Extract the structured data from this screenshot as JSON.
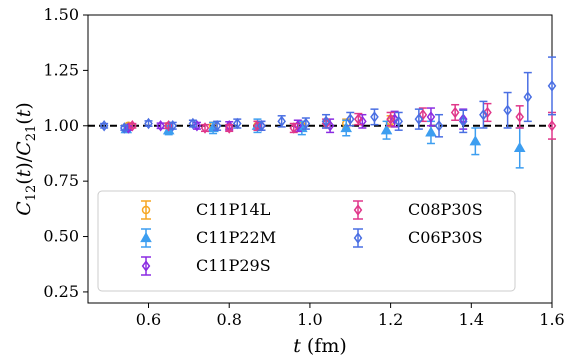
{
  "chart_data": {
    "type": "scatter",
    "xlabel": "t (fm)",
    "ylabel": "C12(t)/C21(t)",
    "xlim": [
      0.45,
      1.6
    ],
    "ylim": [
      0.2,
      1.5
    ],
    "x_ticks": [
      0.6,
      0.8,
      1.0,
      1.2,
      1.4,
      1.6
    ],
    "y_ticks": [
      0.25,
      0.5,
      0.75,
      1.0,
      1.25,
      1.5
    ],
    "x_tick_labels": [
      "0.6",
      "0.8",
      "1.0",
      "1.2",
      "1.4",
      "1.6"
    ],
    "y_tick_labels": [
      "0.25",
      "0.50",
      "0.75",
      "1.00",
      "1.25",
      "1.50"
    ],
    "reference_line": {
      "y": 1.0,
      "style": "dashed",
      "color": "#000000"
    },
    "grid": false,
    "legend": {
      "placement": "lower-left",
      "columns": 2
    },
    "series": [
      {
        "name": "C11P14L",
        "marker": "circle",
        "color": "#f5a623",
        "points": [
          {
            "x": 0.55,
            "y": 1.0,
            "err": 0.01
          },
          {
            "x": 0.65,
            "y": 1.0,
            "err": 0.012
          },
          {
            "x": 0.76,
            "y": 1.0,
            "err": 0.015
          },
          {
            "x": 0.87,
            "y": 1.0,
            "err": 0.02
          },
          {
            "x": 0.98,
            "y": 1.0,
            "err": 0.02
          },
          {
            "x": 1.09,
            "y": 1.01,
            "err": 0.02
          },
          {
            "x": 1.2,
            "y": 1.02,
            "err": 0.025
          }
        ]
      },
      {
        "name": "C11P22M",
        "marker": "triangle",
        "color": "#3d9ef0",
        "points": [
          {
            "x": 0.545,
            "y": 0.985,
            "err": 0.015
          },
          {
            "x": 0.65,
            "y": 0.98,
            "err": 0.02
          },
          {
            "x": 0.76,
            "y": 0.99,
            "err": 0.025
          },
          {
            "x": 0.87,
            "y": 1.0,
            "err": 0.03
          },
          {
            "x": 0.98,
            "y": 0.99,
            "err": 0.03
          },
          {
            "x": 1.09,
            "y": 0.99,
            "err": 0.035
          },
          {
            "x": 1.19,
            "y": 0.98,
            "err": 0.04
          },
          {
            "x": 1.3,
            "y": 0.97,
            "err": 0.05
          },
          {
            "x": 1.41,
            "y": 0.93,
            "err": 0.06
          },
          {
            "x": 1.52,
            "y": 0.9,
            "err": 0.09
          }
        ]
      },
      {
        "name": "C11P29S",
        "marker": "diamond",
        "color": "#8a2be2",
        "points": [
          {
            "x": 0.55,
            "y": 0.99,
            "err": 0.01
          },
          {
            "x": 0.63,
            "y": 1.0,
            "err": 0.012
          },
          {
            "x": 0.72,
            "y": 1.0,
            "err": 0.015
          },
          {
            "x": 0.8,
            "y": 1.0,
            "err": 0.018
          },
          {
            "x": 0.88,
            "y": 1.0,
            "err": 0.02
          },
          {
            "x": 0.97,
            "y": 1.0,
            "err": 0.025
          },
          {
            "x": 1.05,
            "y": 1.0,
            "err": 0.03
          },
          {
            "x": 1.13,
            "y": 1.02,
            "err": 0.03
          },
          {
            "x": 1.21,
            "y": 1.03,
            "err": 0.035
          },
          {
            "x": 1.3,
            "y": 1.04,
            "err": 0.04
          },
          {
            "x": 1.38,
            "y": 1.03,
            "err": 0.045
          }
        ]
      },
      {
        "name": "C08P30S",
        "marker": "diamond",
        "color": "#e0378a",
        "points": [
          {
            "x": 0.56,
            "y": 1.0,
            "err": 0.01
          },
          {
            "x": 0.65,
            "y": 1.0,
            "err": 0.012
          },
          {
            "x": 0.74,
            "y": 0.99,
            "err": 0.015
          },
          {
            "x": 0.8,
            "y": 0.99,
            "err": 0.015
          },
          {
            "x": 0.87,
            "y": 1.0,
            "err": 0.02
          },
          {
            "x": 0.96,
            "y": 0.99,
            "err": 0.02
          },
          {
            "x": 1.04,
            "y": 1.01,
            "err": 0.02
          },
          {
            "x": 1.12,
            "y": 1.03,
            "err": 0.025
          },
          {
            "x": 1.2,
            "y": 1.03,
            "err": 0.03
          },
          {
            "x": 1.28,
            "y": 1.05,
            "err": 0.03
          },
          {
            "x": 1.36,
            "y": 1.06,
            "err": 0.035
          },
          {
            "x": 1.44,
            "y": 1.06,
            "err": 0.04
          },
          {
            "x": 1.52,
            "y": 1.04,
            "err": 0.05
          },
          {
            "x": 1.6,
            "y": 1.0,
            "err": 0.06
          }
        ]
      },
      {
        "name": "C06P30S",
        "marker": "diamond",
        "color": "#4a6fe3",
        "points": [
          {
            "x": 0.49,
            "y": 1.0,
            "err": 0.01
          },
          {
            "x": 0.54,
            "y": 0.99,
            "err": 0.01
          },
          {
            "x": 0.6,
            "y": 1.01,
            "err": 0.012
          },
          {
            "x": 0.66,
            "y": 1.0,
            "err": 0.015
          },
          {
            "x": 0.71,
            "y": 1.01,
            "err": 0.015
          },
          {
            "x": 0.77,
            "y": 1.0,
            "err": 0.02
          },
          {
            "x": 0.82,
            "y": 1.01,
            "err": 0.02
          },
          {
            "x": 0.88,
            "y": 1.0,
            "err": 0.02
          },
          {
            "x": 0.93,
            "y": 1.02,
            "err": 0.025
          },
          {
            "x": 0.99,
            "y": 1.01,
            "err": 0.025
          },
          {
            "x": 1.04,
            "y": 1.02,
            "err": 0.03
          },
          {
            "x": 1.1,
            "y": 1.03,
            "err": 0.03
          },
          {
            "x": 1.16,
            "y": 1.04,
            "err": 0.035
          },
          {
            "x": 1.22,
            "y": 1.02,
            "err": 0.04
          },
          {
            "x": 1.27,
            "y": 1.03,
            "err": 0.045
          },
          {
            "x": 1.32,
            "y": 1.0,
            "err": 0.05
          },
          {
            "x": 1.38,
            "y": 1.02,
            "err": 0.05
          },
          {
            "x": 1.43,
            "y": 1.05,
            "err": 0.06
          },
          {
            "x": 1.49,
            "y": 1.07,
            "err": 0.08
          },
          {
            "x": 1.54,
            "y": 1.13,
            "err": 0.11
          },
          {
            "x": 1.6,
            "y": 1.18,
            "err": 0.13
          }
        ]
      }
    ]
  }
}
